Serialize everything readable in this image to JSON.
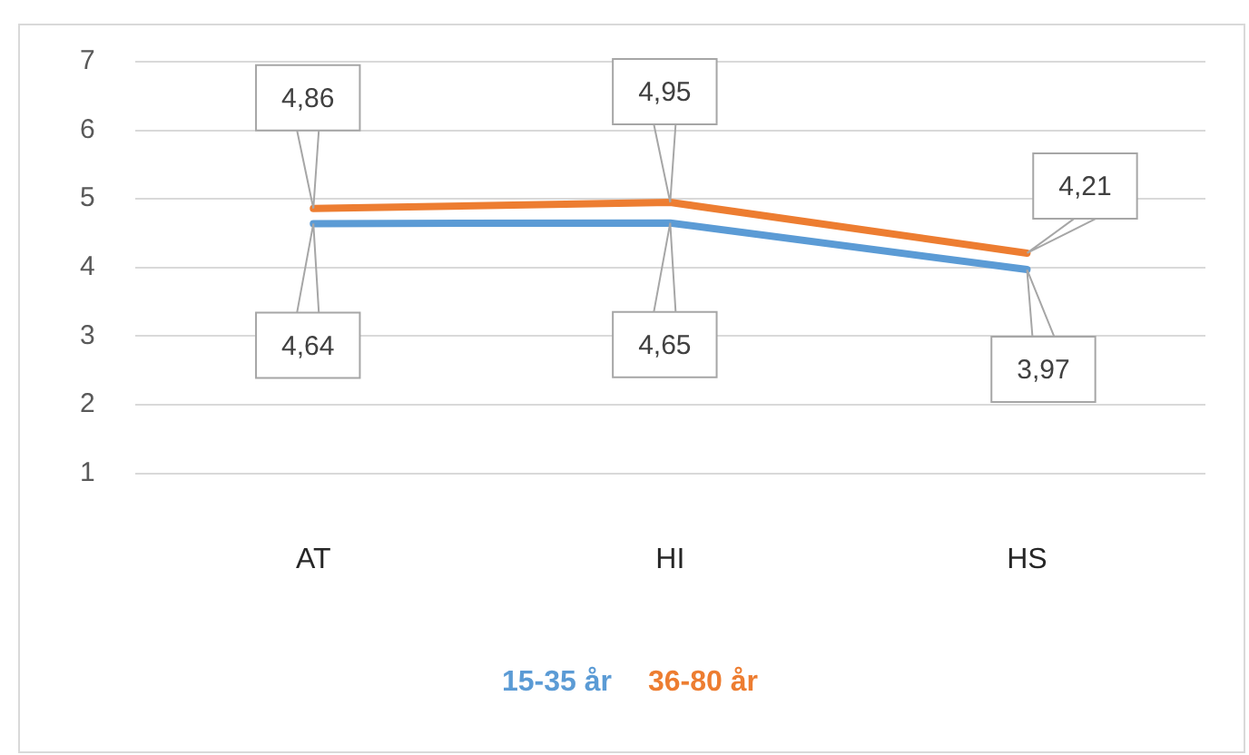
{
  "chart_data": {
    "type": "line",
    "categories": [
      "AT",
      "HI",
      "HS"
    ],
    "series": [
      {
        "name": "15-35 år",
        "color": "#5b9bd5",
        "values": [
          4.64,
          4.65,
          3.97
        ],
        "value_labels": [
          "4,64",
          "4,65",
          "3,97"
        ]
      },
      {
        "name": "36-80 år",
        "color": "#ed7d31",
        "values": [
          4.86,
          4.95,
          4.21
        ],
        "value_labels": [
          "4,86",
          "4,95",
          "4,21"
        ]
      }
    ],
    "ylim": [
      1,
      7
    ],
    "yticks": [
      1,
      2,
      3,
      4,
      5,
      6,
      7
    ],
    "grid": "y",
    "legend": "bottom",
    "marker": "none",
    "line_style": "solid"
  }
}
